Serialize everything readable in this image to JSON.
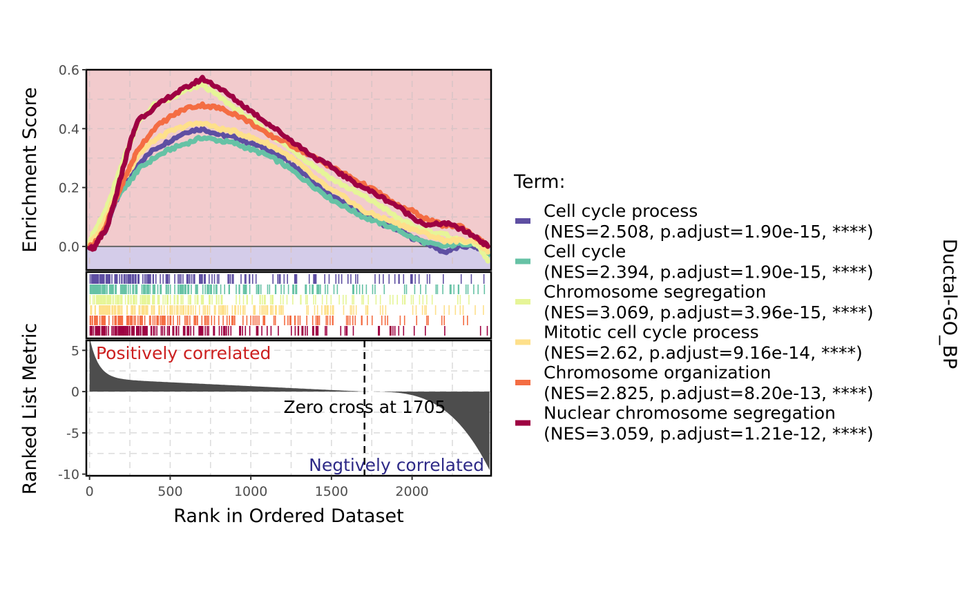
{
  "chart_data": {
    "type": "line",
    "strip_label": "Ductal-GO_BP",
    "xlabel": "Rank in Ordered Dataset",
    "x_ticks": [
      0,
      500,
      1000,
      1500,
      2000
    ],
    "xlim": [
      -20,
      2490
    ],
    "panels": {
      "enrichment": {
        "ylabel": "Enrichment Score",
        "ylim": [
          -0.08,
          0.6
        ],
        "y_ticks": [
          0.0,
          0.2,
          0.4,
          0.6
        ],
        "y_tick_labels": [
          "0.0",
          "0.2",
          "0.4",
          "0.6"
        ],
        "positive_fill": "#f2cbcd",
        "negative_fill": "#d4cce9"
      },
      "hits": {},
      "ranked": {
        "ylabel": "Ranked List Metric",
        "ylim": [
          -10.2,
          6.2
        ],
        "y_ticks": [
          5,
          0,
          -5,
          -10
        ],
        "y_tick_labels": [
          "5",
          "0",
          "-5",
          "-10"
        ],
        "n_genes": 2480,
        "max_metric": 5.8,
        "min_metric": -9.5,
        "zero_cross": 1705,
        "zero_cross_label": "Zero cross at 1705",
        "positive_label": "Positively correlated",
        "negative_label": "Negtively correlated",
        "positive_color": "#cc1f1f",
        "negative_color": "#2e2a87",
        "bar_color": "#4d4d4d"
      }
    },
    "legend": {
      "title": "Term:",
      "position": "right"
    },
    "series": [
      {
        "name": "Cell cycle process",
        "stats": "(NES=2.508, p.adjust=1.90e-15, ****)",
        "color": "#5e4fa2",
        "points": [
          [
            0,
            0
          ],
          [
            40,
            0.02
          ],
          [
            100,
            0.05
          ],
          [
            150,
            0.14
          ],
          [
            200,
            0.2
          ],
          [
            250,
            0.24
          ],
          [
            300,
            0.28
          ],
          [
            400,
            0.33
          ],
          [
            500,
            0.36
          ],
          [
            600,
            0.39
          ],
          [
            700,
            0.4
          ],
          [
            800,
            0.38
          ],
          [
            900,
            0.37
          ],
          [
            1000,
            0.35
          ],
          [
            1100,
            0.33
          ],
          [
            1200,
            0.3
          ],
          [
            1300,
            0.26
          ],
          [
            1400,
            0.21
          ],
          [
            1500,
            0.17
          ],
          [
            1600,
            0.14
          ],
          [
            1700,
            0.11
          ],
          [
            1800,
            0.08
          ],
          [
            1900,
            0.06
          ],
          [
            2000,
            0.03
          ],
          [
            2100,
            0.01
          ],
          [
            2200,
            -0.02
          ],
          [
            2300,
            0.0
          ],
          [
            2400,
            0.0
          ],
          [
            2470,
            -0.03
          ]
        ]
      },
      {
        "name": "Cell cycle",
        "stats": "(NES=2.394, p.adjust=1.90e-15, ****)",
        "color": "#66c2a5",
        "points": [
          [
            0,
            0.01
          ],
          [
            50,
            0.03
          ],
          [
            100,
            0.08
          ],
          [
            150,
            0.15
          ],
          [
            200,
            0.19
          ],
          [
            250,
            0.22
          ],
          [
            300,
            0.26
          ],
          [
            400,
            0.3
          ],
          [
            500,
            0.33
          ],
          [
            600,
            0.35
          ],
          [
            700,
            0.37
          ],
          [
            800,
            0.36
          ],
          [
            900,
            0.35
          ],
          [
            1000,
            0.33
          ],
          [
            1100,
            0.31
          ],
          [
            1200,
            0.28
          ],
          [
            1300,
            0.24
          ],
          [
            1400,
            0.2
          ],
          [
            1500,
            0.16
          ],
          [
            1600,
            0.13
          ],
          [
            1700,
            0.1
          ],
          [
            1800,
            0.08
          ],
          [
            1900,
            0.06
          ],
          [
            2000,
            0.03
          ],
          [
            2100,
            0.01
          ],
          [
            2200,
            0.0
          ],
          [
            2300,
            0.01
          ],
          [
            2400,
            0.01
          ],
          [
            2470,
            -0.03
          ]
        ]
      },
      {
        "name": "Chromosome segregation",
        "stats": "(NES=3.069, p.adjust=3.96e-15, ****)",
        "color": "#e6f598",
        "points": [
          [
            0,
            0.02
          ],
          [
            40,
            0.06
          ],
          [
            100,
            0.12
          ],
          [
            150,
            0.2
          ],
          [
            200,
            0.28
          ],
          [
            250,
            0.35
          ],
          [
            300,
            0.42
          ],
          [
            400,
            0.48
          ],
          [
            500,
            0.5
          ],
          [
            600,
            0.53
          ],
          [
            700,
            0.55
          ],
          [
            800,
            0.51
          ],
          [
            900,
            0.47
          ],
          [
            1000,
            0.43
          ],
          [
            1100,
            0.39
          ],
          [
            1200,
            0.35
          ],
          [
            1300,
            0.31
          ],
          [
            1400,
            0.27
          ],
          [
            1500,
            0.23
          ],
          [
            1600,
            0.2
          ],
          [
            1700,
            0.17
          ],
          [
            1800,
            0.14
          ],
          [
            1900,
            0.1
          ],
          [
            2000,
            0.07
          ],
          [
            2100,
            0.05
          ],
          [
            2200,
            0.04
          ],
          [
            2300,
            0.02
          ],
          [
            2400,
            0.01
          ],
          [
            2470,
            -0.05
          ]
        ]
      },
      {
        "name": "Mitotic cell cycle process",
        "stats": "(NES=2.62, p.adjust=9.16e-14, ****)",
        "color": "#fee08b",
        "points": [
          [
            0,
            0.01
          ],
          [
            50,
            0.04
          ],
          [
            100,
            0.1
          ],
          [
            150,
            0.16
          ],
          [
            200,
            0.22
          ],
          [
            250,
            0.26
          ],
          [
            300,
            0.31
          ],
          [
            400,
            0.36
          ],
          [
            500,
            0.39
          ],
          [
            600,
            0.41
          ],
          [
            700,
            0.42
          ],
          [
            800,
            0.4
          ],
          [
            900,
            0.39
          ],
          [
            1000,
            0.37
          ],
          [
            1100,
            0.35
          ],
          [
            1200,
            0.32
          ],
          [
            1300,
            0.28
          ],
          [
            1400,
            0.23
          ],
          [
            1500,
            0.19
          ],
          [
            1600,
            0.16
          ],
          [
            1700,
            0.12
          ],
          [
            1800,
            0.1
          ],
          [
            1900,
            0.08
          ],
          [
            2000,
            0.06
          ],
          [
            2100,
            0.04
          ],
          [
            2200,
            0.02
          ],
          [
            2300,
            0.02
          ],
          [
            2400,
            0.02
          ],
          [
            2470,
            -0.02
          ]
        ]
      },
      {
        "name": "Chromosome organization",
        "stats": "(NES=2.825, p.adjust=8.20e-13, ****)",
        "color": "#f46d43",
        "points": [
          [
            0,
            0.0
          ],
          [
            50,
            0.02
          ],
          [
            100,
            0.07
          ],
          [
            150,
            0.14
          ],
          [
            200,
            0.21
          ],
          [
            250,
            0.27
          ],
          [
            300,
            0.33
          ],
          [
            400,
            0.4
          ],
          [
            500,
            0.44
          ],
          [
            600,
            0.47
          ],
          [
            700,
            0.48
          ],
          [
            800,
            0.47
          ],
          [
            900,
            0.45
          ],
          [
            1000,
            0.42
          ],
          [
            1100,
            0.38
          ],
          [
            1200,
            0.36
          ],
          [
            1300,
            0.33
          ],
          [
            1400,
            0.3
          ],
          [
            1500,
            0.27
          ],
          [
            1600,
            0.24
          ],
          [
            1700,
            0.21
          ],
          [
            1800,
            0.18
          ],
          [
            1900,
            0.14
          ],
          [
            2000,
            0.12
          ],
          [
            2100,
            0.09
          ],
          [
            2200,
            0.07
          ],
          [
            2300,
            0.07
          ],
          [
            2400,
            0.03
          ],
          [
            2470,
            0.0
          ]
        ]
      },
      {
        "name": "Nuclear chromosome segregation",
        "stats": "(NES=3.059, p.adjust=1.21e-12, ****)",
        "color": "#9e0142",
        "points": [
          [
            0,
            0.0
          ],
          [
            30,
            -0.01
          ],
          [
            60,
            0.03
          ],
          [
            100,
            0.05
          ],
          [
            150,
            0.14
          ],
          [
            200,
            0.25
          ],
          [
            250,
            0.35
          ],
          [
            300,
            0.43
          ],
          [
            400,
            0.47
          ],
          [
            500,
            0.51
          ],
          [
            600,
            0.54
          ],
          [
            700,
            0.57
          ],
          [
            800,
            0.54
          ],
          [
            900,
            0.5
          ],
          [
            1000,
            0.46
          ],
          [
            1100,
            0.42
          ],
          [
            1200,
            0.38
          ],
          [
            1300,
            0.34
          ],
          [
            1400,
            0.3
          ],
          [
            1500,
            0.27
          ],
          [
            1600,
            0.23
          ],
          [
            1700,
            0.2
          ],
          [
            1800,
            0.17
          ],
          [
            1900,
            0.14
          ],
          [
            2000,
            0.1
          ],
          [
            2100,
            0.07
          ],
          [
            2200,
            0.08
          ],
          [
            2300,
            0.06
          ],
          [
            2400,
            0.03
          ],
          [
            2470,
            0.0
          ]
        ]
      }
    ]
  }
}
